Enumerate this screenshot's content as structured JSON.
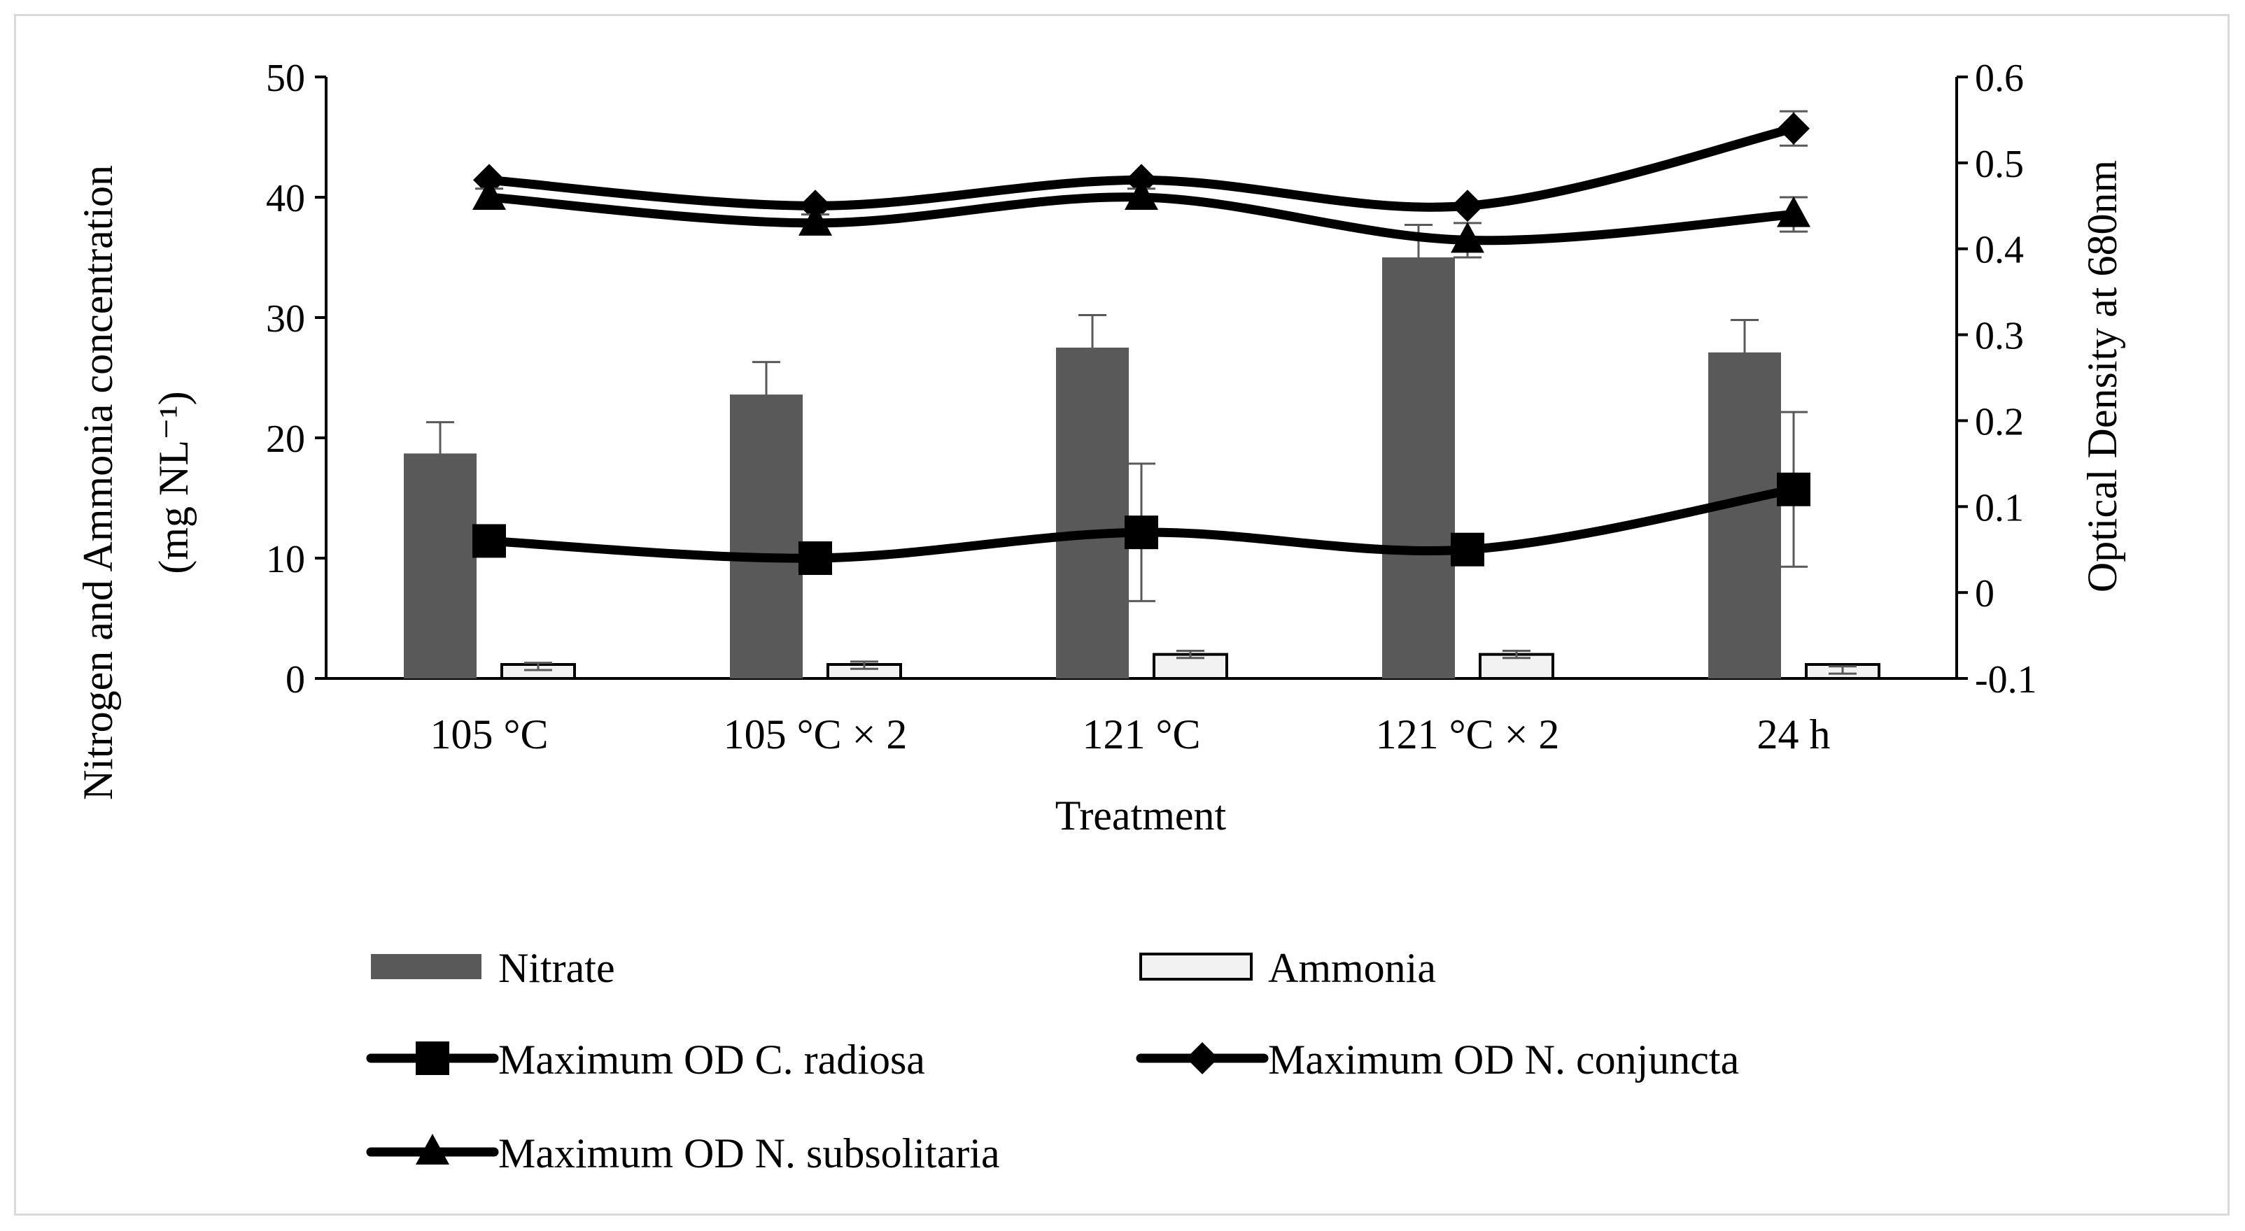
{
  "chart_data": {
    "type": "bar",
    "categories": [
      "105 °C",
      "105 °C × 2",
      "121 °C",
      "121 °C × 2",
      "24 h"
    ],
    "xlabel": "Treatment",
    "ylabel": "Nitrogen and Ammonia concentration",
    "ylabel_unit": "(mg NL⁻¹)",
    "y2label": "Optical Density at 680nm",
    "ylim": [
      0,
      50
    ],
    "y_ticks": [
      "0",
      "10",
      "20",
      "30",
      "40",
      "50"
    ],
    "y2lim": [
      -0.1,
      0.6
    ],
    "y2_ticks": [
      "-0.1",
      "0",
      "0.1",
      "0.2",
      "0.3",
      "0.4",
      "0.5",
      "0.6"
    ],
    "grid": false,
    "legend_position": "bottom",
    "series": [
      {
        "name": "Nitrate",
        "kind": "bar",
        "axis": "left",
        "color": "#595959",
        "values": [
          18.7,
          23.6,
          27.5,
          35.0,
          27.1
        ],
        "errors": [
          2.6,
          2.7,
          2.7,
          2.7,
          2.7
        ]
      },
      {
        "name": "Ammonia",
        "kind": "bar",
        "axis": "left",
        "color": "#f2f2f2",
        "values": [
          1.0,
          1.1,
          2.0,
          2.0,
          0.7
        ],
        "errors": [
          0.3,
          0.3,
          0.3,
          0.3,
          0.3
        ]
      },
      {
        "name": "Maximum OD C. radiosa",
        "kind": "line",
        "marker": "square",
        "axis": "right",
        "color": "#000000",
        "values": [
          0.06,
          0.04,
          0.07,
          0.05,
          0.12
        ],
        "errors": [
          0.0,
          0.0,
          0.08,
          0.0,
          0.09
        ]
      },
      {
        "name": "Maximum OD N. conjuncta",
        "kind": "line",
        "marker": "diamond",
        "axis": "right",
        "color": "#000000",
        "values": [
          0.48,
          0.45,
          0.48,
          0.45,
          0.54
        ],
        "errors": [
          0.0,
          0.0,
          0.0,
          0.0,
          0.02
        ]
      },
      {
        "name": "Maximum OD N. subsolitaria",
        "kind": "line",
        "marker": "triangle",
        "axis": "right",
        "color": "#000000",
        "values": [
          0.46,
          0.43,
          0.46,
          0.41,
          0.44
        ],
        "errors": [
          0.01,
          0.01,
          0.01,
          0.02,
          0.02
        ]
      }
    ]
  }
}
